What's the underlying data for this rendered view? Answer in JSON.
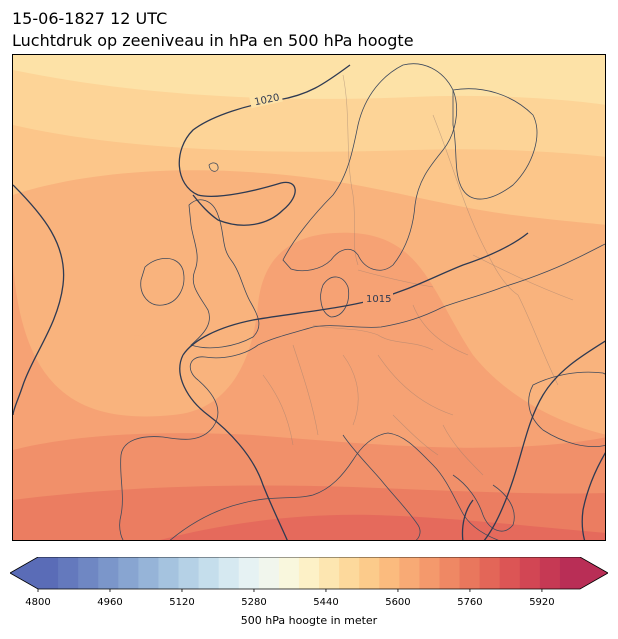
{
  "header": {
    "datetime": "15-06-1827 12 UTC",
    "subtitle": "Luchtdruk op zeeniveau in hPa en 500 hPa hoogte"
  },
  "map": {
    "isobars": [
      {
        "value": "1020",
        "label": "1020"
      },
      {
        "value": "1015",
        "label": "1015"
      }
    ],
    "fill_colors": [
      "#fde2a7",
      "#fdd497",
      "#fcc68a",
      "#f9b37d",
      "#f6a274",
      "#f1906a",
      "#eb7d61",
      "#e56a5c"
    ]
  },
  "colorbar": {
    "label": "500 hPa hoogte in meter",
    "min": 4800,
    "max": 5960,
    "step": 40,
    "tick_labels": [
      "4800",
      "4960",
      "5120",
      "5280",
      "5440",
      "5600",
      "5760",
      "5920"
    ],
    "colors": [
      "#5a6cb7",
      "#6479bd",
      "#6f87c3",
      "#7b96ca",
      "#88a5d1",
      "#96b4d8",
      "#a5c3df",
      "#b5d1e6",
      "#c5deec",
      "#d6e9f1",
      "#e6f2f3",
      "#f1f6ed",
      "#f9f7dd",
      "#fdf1c7",
      "#fde6b1",
      "#fdd99c",
      "#fccb8b",
      "#fbbb7e",
      "#f8aa75",
      "#f4996c",
      "#ef8864",
      "#e9775d",
      "#e36658",
      "#dc5555",
      "#d24654",
      "#c63954",
      "#b92e56"
    ]
  }
}
